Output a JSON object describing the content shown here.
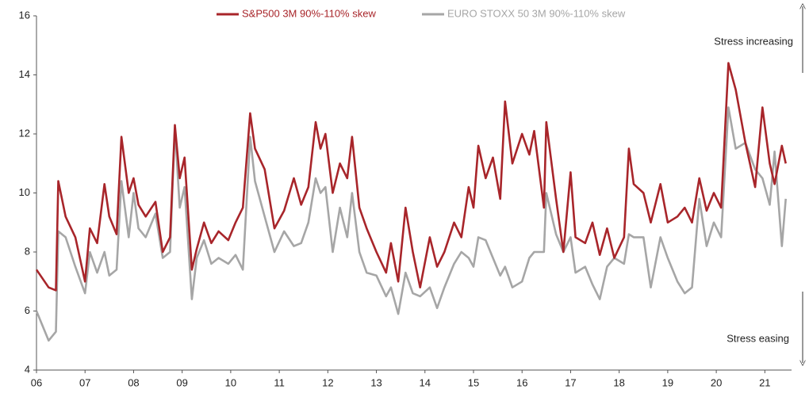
{
  "chart_data": {
    "type": "line",
    "x": [
      2006.0,
      2006.25,
      2006.4,
      2006.45,
      2006.6,
      2006.8,
      2007.0,
      2007.1,
      2007.25,
      2007.4,
      2007.5,
      2007.65,
      2007.75,
      2007.9,
      2008.0,
      2008.1,
      2008.25,
      2008.45,
      2008.6,
      2008.75,
      2008.85,
      2008.95,
      2009.05,
      2009.2,
      2009.3,
      2009.45,
      2009.6,
      2009.75,
      2009.95,
      2010.1,
      2010.25,
      2010.4,
      2010.5,
      2010.7,
      2010.9,
      2011.1,
      2011.3,
      2011.45,
      2011.6,
      2011.75,
      2011.85,
      2011.95,
      2012.1,
      2012.25,
      2012.4,
      2012.5,
      2012.65,
      2012.8,
      2013.0,
      2013.2,
      2013.3,
      2013.45,
      2013.6,
      2013.75,
      2013.9,
      2014.1,
      2014.25,
      2014.4,
      2014.6,
      2014.75,
      2014.9,
      2015.0,
      2015.1,
      2015.25,
      2015.4,
      2015.55,
      2015.65,
      2015.8,
      2016.0,
      2016.15,
      2016.25,
      2016.45,
      2016.5,
      2016.7,
      2016.85,
      2017.0,
      2017.1,
      2017.3,
      2017.45,
      2017.6,
      2017.75,
      2017.9,
      2018.1,
      2018.2,
      2018.3,
      2018.5,
      2018.65,
      2018.85,
      2019.0,
      2019.2,
      2019.35,
      2019.5,
      2019.65,
      2019.8,
      2019.95,
      2020.1,
      2020.25,
      2020.4,
      2020.6,
      2020.8,
      2020.95,
      2021.1,
      2021.2,
      2021.35,
      2021.43
    ],
    "series": [
      {
        "name": "S&P500 3M 90%-110% skew",
        "color": "#a8252a",
        "values": [
          7.4,
          6.8,
          6.7,
          10.4,
          9.2,
          8.5,
          7.0,
          8.8,
          8.3,
          10.3,
          9.2,
          8.6,
          11.9,
          10.0,
          10.5,
          9.6,
          9.2,
          9.7,
          8.0,
          8.5,
          12.3,
          10.5,
          11.2,
          7.4,
          8.1,
          9.0,
          8.3,
          8.7,
          8.4,
          9.0,
          9.5,
          12.7,
          11.5,
          10.8,
          8.8,
          9.4,
          10.5,
          9.6,
          10.2,
          12.4,
          11.5,
          12.0,
          10.0,
          11.0,
          10.5,
          11.9,
          9.5,
          8.8,
          8.0,
          7.3,
          8.3,
          7.0,
          9.5,
          8.0,
          6.8,
          8.5,
          7.5,
          8.0,
          9.0,
          8.5,
          10.2,
          9.5,
          11.6,
          10.5,
          11.2,
          9.8,
          13.1,
          11.0,
          12.0,
          11.3,
          12.1,
          9.5,
          12.4,
          9.8,
          8.0,
          10.7,
          8.5,
          8.3,
          9.0,
          7.9,
          8.8,
          7.8,
          8.5,
          11.5,
          10.3,
          10.0,
          9.0,
          10.3,
          9.0,
          9.2,
          9.5,
          9.0,
          10.5,
          9.4,
          10.0,
          9.5,
          14.4,
          13.5,
          11.7,
          10.2,
          12.9,
          11.0,
          10.3,
          11.6,
          11.0
        ]
      },
      {
        "name": "EURO STOXX 50 3M 90%-110% skew",
        "color": "#a6a6a6",
        "values": [
          6.0,
          5.0,
          5.3,
          8.7,
          8.5,
          7.5,
          6.6,
          8.0,
          7.3,
          8.0,
          7.2,
          7.4,
          10.4,
          8.5,
          10.0,
          8.8,
          8.5,
          9.3,
          7.8,
          8.0,
          12.2,
          9.5,
          10.2,
          6.4,
          7.8,
          8.4,
          7.6,
          7.8,
          7.6,
          7.9,
          7.4,
          11.9,
          10.4,
          9.2,
          8.0,
          8.7,
          8.2,
          8.3,
          9.0,
          10.5,
          10.0,
          10.2,
          8.0,
          9.5,
          8.5,
          10.0,
          8.0,
          7.3,
          7.2,
          6.5,
          6.8,
          5.9,
          7.3,
          6.6,
          6.5,
          6.8,
          6.1,
          6.8,
          7.6,
          8.0,
          7.8,
          7.5,
          8.5,
          8.4,
          7.8,
          7.2,
          7.5,
          6.8,
          7.0,
          7.8,
          8.0,
          8.0,
          10.0,
          8.6,
          8.0,
          8.5,
          7.3,
          7.5,
          6.9,
          6.4,
          7.5,
          7.8,
          7.6,
          8.6,
          8.5,
          8.5,
          6.8,
          8.5,
          7.8,
          7.0,
          6.6,
          6.8,
          9.8,
          8.2,
          9.0,
          8.5,
          12.9,
          11.5,
          11.7,
          10.8,
          10.5,
          9.6,
          11.4,
          8.2,
          9.8
        ]
      }
    ],
    "xlim": [
      2006,
      2021.55
    ],
    "xticks": [
      {
        "value": 2006,
        "label": "06"
      },
      {
        "value": 2007,
        "label": "07"
      },
      {
        "value": 2008,
        "label": "08"
      },
      {
        "value": 2009,
        "label": "09"
      },
      {
        "value": 2010,
        "label": "10"
      },
      {
        "value": 2011,
        "label": "11"
      },
      {
        "value": 2012,
        "label": "12"
      },
      {
        "value": 2013,
        "label": "13"
      },
      {
        "value": 2014,
        "label": "14"
      },
      {
        "value": 2015,
        "label": "15"
      },
      {
        "value": 2016,
        "label": "16"
      },
      {
        "value": 2017,
        "label": "17"
      },
      {
        "value": 2018,
        "label": "18"
      },
      {
        "value": 2019,
        "label": "19"
      },
      {
        "value": 2020,
        "label": "20"
      },
      {
        "value": 2021,
        "label": "21"
      }
    ],
    "ylim": [
      4,
      16
    ],
    "yticks": [
      4,
      6,
      8,
      10,
      12,
      14,
      16
    ],
    "annotations": [
      "Stress increasing",
      "Stress easing"
    ]
  }
}
